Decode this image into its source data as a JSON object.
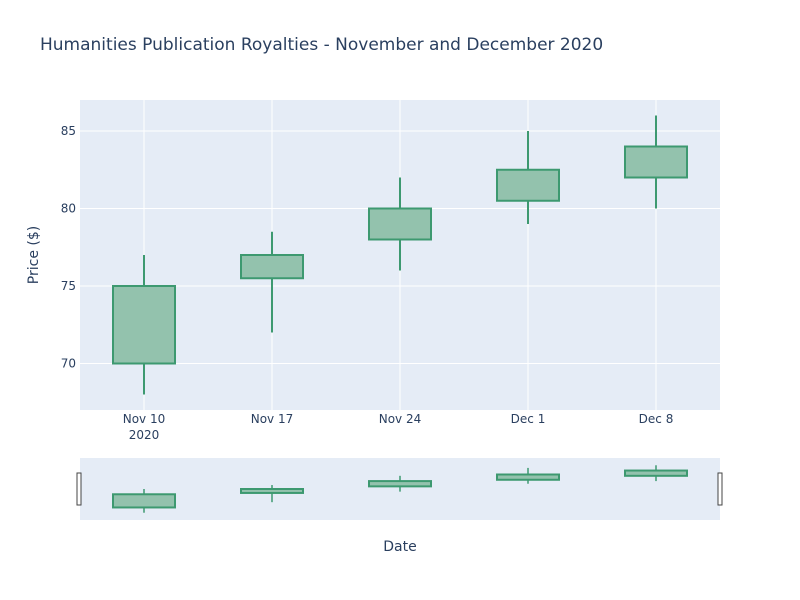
{
  "chart_data": {
    "type": "candlestick",
    "title": "Humanities Publication Royalties - November and December 2020",
    "xlabel": "Date",
    "ylabel": "Price ($)",
    "ylim": [
      67,
      87
    ],
    "yticks": [
      70,
      75,
      80,
      85
    ],
    "categories": [
      "2020-11-10",
      "2020-11-17",
      "2020-11-24",
      "2020-12-01",
      "2020-12-08"
    ],
    "tick_labels": [
      {
        "line1": "Nov 10",
        "line2": "2020"
      },
      {
        "line1": "Nov 17",
        "line2": ""
      },
      {
        "line1": "Nov 24",
        "line2": ""
      },
      {
        "line1": "Dec 1",
        "line2": ""
      },
      {
        "line1": "Dec 8",
        "line2": ""
      }
    ],
    "series": [
      {
        "open": [
          70,
          75.5,
          78,
          80.5,
          82
        ],
        "high": [
          77,
          78.5,
          82,
          85,
          86
        ],
        "low": [
          68,
          72,
          76,
          79,
          80
        ],
        "close": [
          75,
          77,
          80,
          82.5,
          84
        ]
      }
    ],
    "grid": true,
    "range_slider": true,
    "colors": {
      "increasing_line": "#3d9970",
      "increasing_fill": "#93c2ad",
      "plot_bg": "#e5ecf6",
      "grid": "#ffffff",
      "text": "#2a3f5f"
    }
  }
}
